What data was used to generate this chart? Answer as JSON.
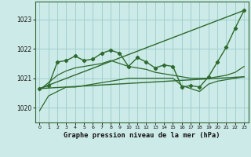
{
  "background_color": "#cceae7",
  "grid_color": "#99cccc",
  "line_color": "#2d6a2d",
  "title": "Graphe pression niveau de la mer (hPa)",
  "xlim": [
    -0.5,
    23.5
  ],
  "ylim": [
    1019.5,
    1023.6
  ],
  "yticks": [
    1020,
    1021,
    1022,
    1023
  ],
  "xticks": [
    0,
    1,
    2,
    3,
    4,
    5,
    6,
    7,
    8,
    9,
    10,
    11,
    12,
    13,
    14,
    15,
    16,
    17,
    18,
    19,
    20,
    21,
    22,
    23
  ],
  "series": {
    "main_line": {
      "x": [
        0,
        1,
        2,
        3,
        4,
        5,
        6,
        7,
        8,
        9,
        10,
        11,
        12,
        13,
        14,
        15,
        16,
        17,
        18,
        19,
        20,
        21,
        22,
        23
      ],
      "y": [
        1020.65,
        1020.75,
        1021.55,
        1021.6,
        1021.75,
        1021.6,
        1021.65,
        1021.85,
        1021.95,
        1021.85,
        1021.4,
        1021.7,
        1021.55,
        1021.35,
        1021.45,
        1021.4,
        1020.7,
        1020.75,
        1020.7,
        1021.05,
        1021.55,
        1022.05,
        1022.7,
        1023.3
      ]
    },
    "trend_upper": {
      "x": [
        0,
        23
      ],
      "y": [
        1020.65,
        1023.3
      ]
    },
    "trend_mid": {
      "x": [
        0,
        23
      ],
      "y": [
        1020.65,
        1021.05
      ]
    },
    "smooth_line": {
      "x": [
        0,
        1,
        2,
        3,
        4,
        5,
        6,
        7,
        8,
        9,
        10,
        11,
        12,
        13,
        14,
        15,
        16,
        17,
        18,
        19,
        20,
        21,
        22,
        23
      ],
      "y": [
        1020.6,
        1020.85,
        1021.1,
        1021.25,
        1021.35,
        1021.4,
        1021.45,
        1021.5,
        1021.6,
        1021.5,
        1021.4,
        1021.35,
        1021.3,
        1021.2,
        1021.15,
        1021.1,
        1021.05,
        1021.0,
        1021.0,
        1021.0,
        1021.05,
        1021.1,
        1021.2,
        1021.4
      ]
    },
    "low_line": {
      "x": [
        0,
        1,
        2,
        3,
        4,
        5,
        6,
        7,
        8,
        9,
        10,
        11,
        12,
        13,
        14,
        15,
        16,
        17,
        18,
        19,
        20,
        21,
        22,
        23
      ],
      "y": [
        1019.9,
        1020.4,
        1020.55,
        1020.7,
        1020.7,
        1020.75,
        1020.8,
        1020.85,
        1020.9,
        1020.95,
        1021.0,
        1021.0,
        1021.0,
        1021.0,
        1021.0,
        1021.0,
        1020.75,
        1020.65,
        1020.55,
        1020.8,
        1020.9,
        1020.95,
        1021.0,
        1021.05
      ]
    }
  }
}
